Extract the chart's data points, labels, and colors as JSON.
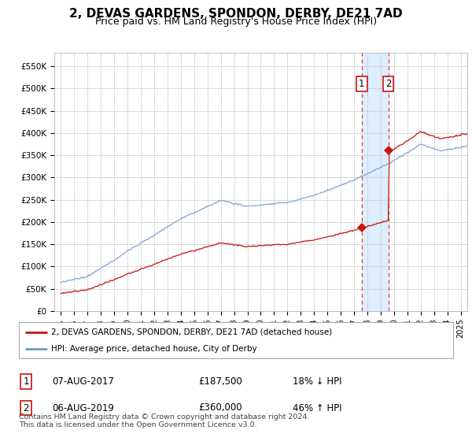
{
  "title": "2, DEVAS GARDENS, SPONDON, DERBY, DE21 7AD",
  "subtitle": "Price paid vs. HM Land Registry's House Price Index (HPI)",
  "title_fontsize": 11,
  "subtitle_fontsize": 9,
  "ylabel_ticks": [
    "£0",
    "£50K",
    "£100K",
    "£150K",
    "£200K",
    "£250K",
    "£300K",
    "£350K",
    "£400K",
    "£450K",
    "£500K",
    "£550K"
  ],
  "ytick_values": [
    0,
    50000,
    100000,
    150000,
    200000,
    250000,
    300000,
    350000,
    400000,
    450000,
    500000,
    550000
  ],
  "ylim": [
    0,
    580000
  ],
  "xlim_start": 1994.5,
  "xlim_end": 2025.5,
  "hpi_color": "#7799cc",
  "price_color": "#cc1111",
  "grid_color": "#cccccc",
  "bg_color": "#ffffff",
  "shade_color": "#ddeeff",
  "legend_label_red": "2, DEVAS GARDENS, SPONDON, DERBY, DE21 7AD (detached house)",
  "legend_label_blue": "HPI: Average price, detached house, City of Derby",
  "transaction_1_date": "07-AUG-2017",
  "transaction_1_price": "£187,500",
  "transaction_1_hpi": "18% ↓ HPI",
  "transaction_2_date": "06-AUG-2019",
  "transaction_2_price": "£360,000",
  "transaction_2_hpi": "46% ↑ HPI",
  "footnote": "Contains HM Land Registry data © Crown copyright and database right 2024.\nThis data is licensed under the Open Government Licence v3.0.",
  "vline_color": "#dd4444",
  "vline_style": "--",
  "marker1_x": 2017.58,
  "marker1_y": 187500,
  "marker2_x": 2019.58,
  "marker2_y": 360000
}
